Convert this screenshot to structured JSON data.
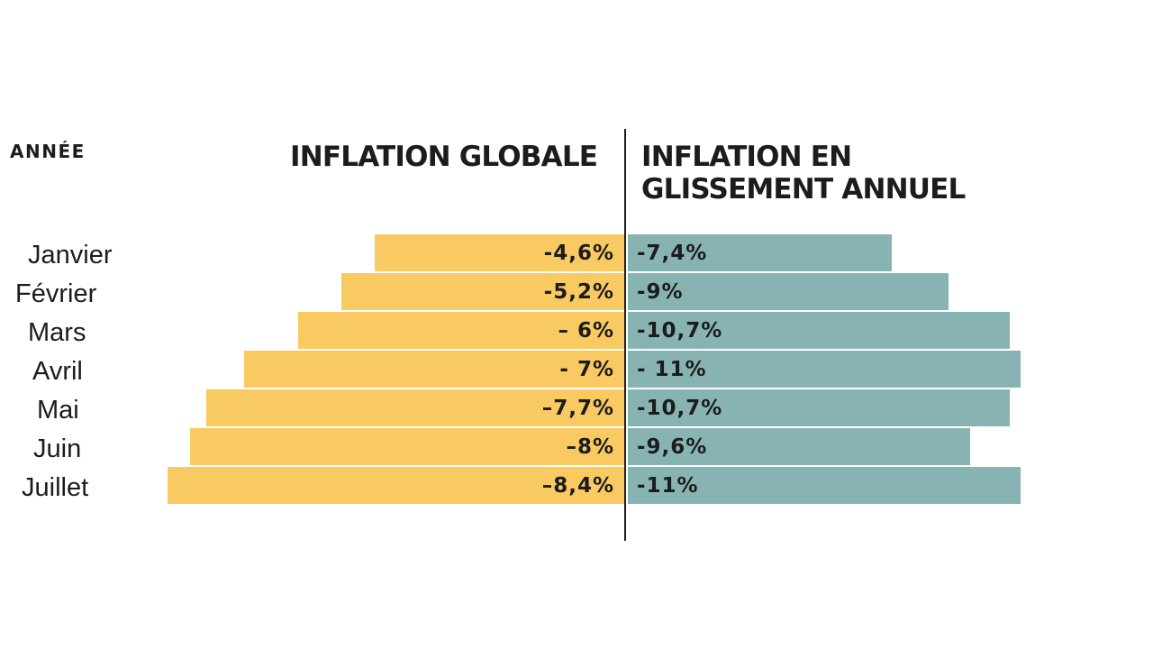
{
  "header": {
    "year_label": "ANNÉE",
    "left_title": "INFLATION GLOBALE",
    "right_title_line1": "INFLATION EN",
    "right_title_line2": "GLISSEMENT ANNUEL"
  },
  "colors": {
    "left_bar": "#f9c962",
    "right_bar": "#88b3b3",
    "text": "#1c1c1c"
  },
  "rows": [
    {
      "month": "Janvier",
      "left_label": "-4,6%",
      "right_label": "-7,4%"
    },
    {
      "month": "Février",
      "left_label": "-5,2%",
      "right_label": "-9%"
    },
    {
      "month": "Mars",
      "left_label": "– 6%",
      "right_label": "-10,7%"
    },
    {
      "month": "Avril",
      "left_label": "- 7%",
      "right_label": "- 11%"
    },
    {
      "month": "Mai",
      "left_label": "–7,7%",
      "right_label": "-10,7%"
    },
    {
      "month": "Juin",
      "left_label": "–8%",
      "right_label": "-9,6%"
    },
    {
      "month": "Juillet",
      "left_label": "–8,4%",
      "right_label": "-11%"
    }
  ],
  "chart_data": {
    "type": "bar",
    "orientation": "horizontal-diverging",
    "title": "",
    "categories": [
      "Janvier",
      "Février",
      "Mars",
      "Avril",
      "Mai",
      "Juin",
      "Juillet"
    ],
    "category_axis_label": "ANNÉE",
    "series": [
      {
        "name": "INFLATION GLOBALE",
        "color": "#f9c962",
        "side": "left",
        "values": [
          -4.6,
          -5.2,
          -6,
          -7,
          -7.7,
          -8,
          -8.4
        ]
      },
      {
        "name": "INFLATION EN GLISSEMENT ANNUEL",
        "color": "#88b3b3",
        "side": "right",
        "values": [
          -7.4,
          -9,
          -10.7,
          -11,
          -10.7,
          -9.6,
          -11
        ]
      }
    ],
    "unit": "%",
    "grid": false,
    "legend": "column headers"
  }
}
